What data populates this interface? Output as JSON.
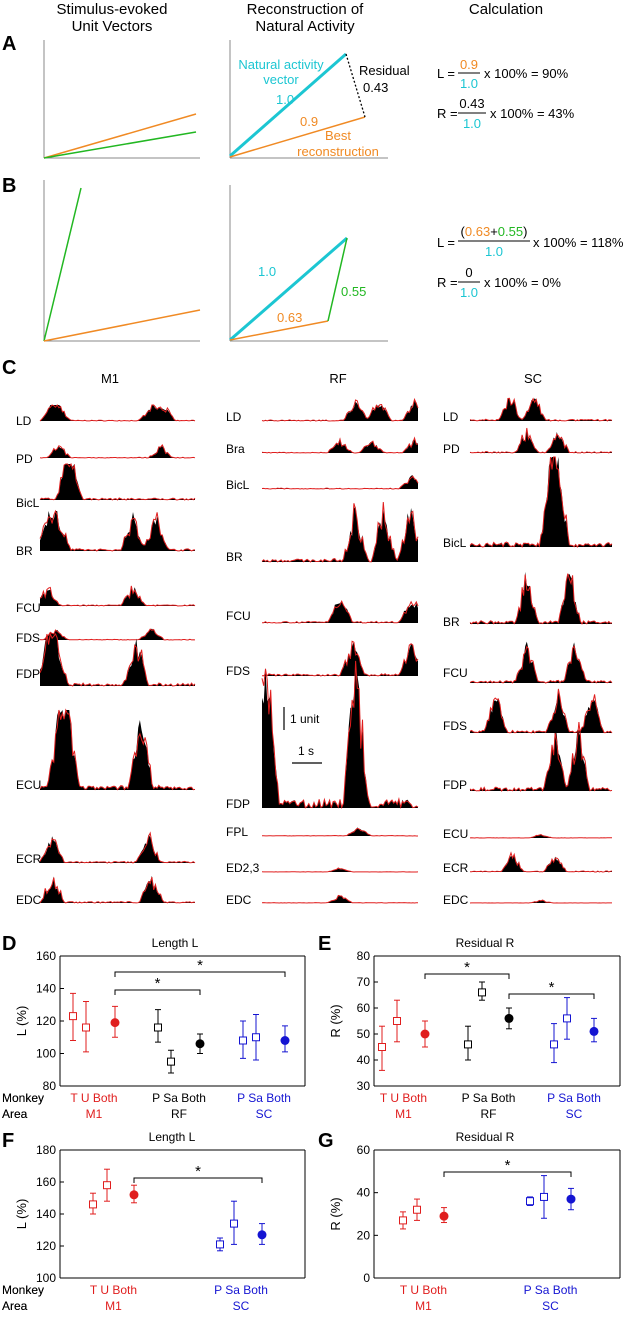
{
  "colors": {
    "orange": "#F08A24",
    "green": "#22B722",
    "cyan": "#1CC6D2",
    "red": "#E01E1E",
    "blue": "#1414D2",
    "black": "#000000",
    "grey": "#555555"
  },
  "panelA": {
    "label": "A",
    "headers": {
      "col1_line1": "Stimulus-evoked",
      "col1_line2": "Unit Vectors",
      "col2_line1": "Reconstruction of",
      "col2_line2": "Natural Activity",
      "col3": "Calculation"
    },
    "natural_label_1": "Natural activity",
    "natural_label_2": "vector",
    "natural_value": "1.0",
    "residual_label": "Residual",
    "residual_value": "0.43",
    "best_value": "0.9",
    "best_label_1": "Best",
    "best_label_2": "reconstruction",
    "L_prefix": "L =",
    "L_num": "0.9",
    "L_den": "1.0",
    "L_suffix": "x 100% = 90%",
    "R_prefix": "R =",
    "R_num": "0.43",
    "R_den": "1.0",
    "R_suffix": "x 100% = 43%"
  },
  "panelB": {
    "label": "B",
    "cyan_value": "1.0",
    "green_value": "0.55",
    "orange_value": "0.63",
    "L_prefix": "L =",
    "L_open": "(",
    "L_num1": "0.63",
    "L_plus": "+",
    "L_num2": "0.55",
    "L_close": ")",
    "L_den": "1.0",
    "L_suffix": "x 100% = 118%",
    "R_prefix": "R =",
    "R_num": "0",
    "R_den": "1.0",
    "R_suffix": "x 100% = 0%"
  },
  "panelC": {
    "label": "C",
    "columns": [
      {
        "title": "M1",
        "muscles": [
          "LD",
          "PD",
          "BicL",
          "BR",
          "FCU",
          "FDS",
          "FDP",
          "ECU",
          "ECR",
          "EDC"
        ]
      },
      {
        "title": "RF",
        "muscles": [
          "LD",
          "Bra",
          "BicL",
          "BR",
          "FCU",
          "FDS",
          "FDP",
          "FPL",
          "ED2,3",
          "EDC"
        ]
      },
      {
        "title": "SC",
        "muscles": [
          "LD",
          "PD",
          "BicL",
          "BR",
          "FCU",
          "FDS",
          "FDP",
          "ECU",
          "ECR",
          "EDC"
        ]
      }
    ],
    "scale_unit": "1 unit",
    "scale_time": "1 s"
  },
  "panelD": {
    "label": "D",
    "title": "Length L",
    "ylabel": "L (%)",
    "yticks": [
      "80",
      "100",
      "120",
      "140",
      "160"
    ],
    "star": "*",
    "groups": [
      {
        "letters": [
          "T",
          "U",
          "Both"
        ],
        "area": "M1",
        "color": "red"
      },
      {
        "letters": [
          "P",
          "Sa",
          "Both"
        ],
        "area": "RF",
        "color": "black"
      },
      {
        "letters": [
          "P",
          "Sa",
          "Both"
        ],
        "area": "SC",
        "color": "blue"
      }
    ]
  },
  "panelE": {
    "label": "E",
    "title": "Residual R",
    "ylabel": "R (%)",
    "yticks": [
      "30",
      "40",
      "50",
      "60",
      "70",
      "80"
    ],
    "star": "*",
    "groups": [
      {
        "letters": [
          "T",
          "U",
          "Both"
        ],
        "area": "M1",
        "color": "red"
      },
      {
        "letters": [
          "P",
          "Sa",
          "Both"
        ],
        "area": "RF",
        "color": "black"
      },
      {
        "letters": [
          "P",
          "Sa",
          "Both"
        ],
        "area": "SC",
        "color": "blue"
      }
    ]
  },
  "panelF": {
    "label": "F",
    "title": "Length L",
    "ylabel": "L (%)",
    "yticks": [
      "100",
      "120",
      "140",
      "160",
      "180"
    ],
    "star": "*",
    "groups": [
      {
        "letters": [
          "T",
          "U",
          "Both"
        ],
        "area": "M1",
        "color": "red"
      },
      {
        "letters": [
          "P",
          "Sa",
          "Both"
        ],
        "area": "SC",
        "color": "blue"
      }
    ]
  },
  "panelG": {
    "label": "G",
    "title": "Residual R",
    "ylabel": "R (%)",
    "yticks": [
      "0",
      "20",
      "40",
      "60"
    ],
    "star": "*",
    "groups": [
      {
        "letters": [
          "T",
          "U",
          "Both"
        ],
        "area": "M1",
        "color": "red"
      },
      {
        "letters": [
          "P",
          "Sa",
          "Both"
        ],
        "area": "SC",
        "color": "blue"
      }
    ]
  },
  "row_labels": {
    "monkey": "Monkey",
    "area": "Area"
  },
  "chart_data": [
    {
      "type": "scatter",
      "panel": "D",
      "title": "Length L",
      "ylabel": "L (%)",
      "ylim": [
        80,
        160
      ],
      "categories": [
        "T",
        "U",
        "Both (M1)",
        "P",
        "Sa",
        "Both (RF)",
        "P",
        "Sa",
        "Both (SC)"
      ],
      "series": [
        {
          "name": "M1",
          "color": "red",
          "points": [
            {
              "x": "T",
              "y": 123,
              "lo": 108,
              "hi": 137,
              "marker": "open"
            },
            {
              "x": "U",
              "y": 116,
              "lo": 101,
              "hi": 132,
              "marker": "open"
            },
            {
              "x": "Both",
              "y": 119,
              "lo": 110,
              "hi": 129,
              "marker": "filled"
            }
          ]
        },
        {
          "name": "RF",
          "color": "black",
          "points": [
            {
              "x": "P",
              "y": 116,
              "lo": 107,
              "hi": 127,
              "marker": "open"
            },
            {
              "x": "Sa",
              "y": 95,
              "lo": 88,
              "hi": 102,
              "marker": "open"
            },
            {
              "x": "Both",
              "y": 106,
              "lo": 100,
              "hi": 112,
              "marker": "filled"
            }
          ]
        },
        {
          "name": "SC",
          "color": "blue",
          "points": [
            {
              "x": "P",
              "y": 108,
              "lo": 97,
              "hi": 120,
              "marker": "open"
            },
            {
              "x": "Sa",
              "y": 110,
              "lo": 96,
              "hi": 124,
              "marker": "open"
            },
            {
              "x": "Both",
              "y": 108,
              "lo": 101,
              "hi": 117,
              "marker": "filled"
            }
          ]
        }
      ],
      "significance": [
        [
          "Both (M1)",
          "Both (RF)"
        ],
        [
          "Both (M1)",
          "Both (SC)"
        ]
      ]
    },
    {
      "type": "scatter",
      "panel": "E",
      "title": "Residual R",
      "ylabel": "R (%)",
      "ylim": [
        30,
        80
      ],
      "categories": [
        "T",
        "U",
        "Both (M1)",
        "P",
        "Sa",
        "Both (RF)",
        "P",
        "Sa",
        "Both (SC)"
      ],
      "series": [
        {
          "name": "M1",
          "color": "red",
          "points": [
            {
              "x": "T",
              "y": 45,
              "lo": 36,
              "hi": 53,
              "marker": "open"
            },
            {
              "x": "U",
              "y": 55,
              "lo": 47,
              "hi": 63,
              "marker": "open"
            },
            {
              "x": "Both",
              "y": 50,
              "lo": 45,
              "hi": 55,
              "marker": "filled"
            }
          ]
        },
        {
          "name": "RF",
          "color": "black",
          "points": [
            {
              "x": "P",
              "y": 46,
              "lo": 40,
              "hi": 53,
              "marker": "open"
            },
            {
              "x": "Sa",
              "y": 66,
              "lo": 63,
              "hi": 70,
              "marker": "open"
            },
            {
              "x": "Both",
              "y": 56,
              "lo": 52,
              "hi": 60,
              "marker": "filled"
            }
          ]
        },
        {
          "name": "SC",
          "color": "blue",
          "points": [
            {
              "x": "P",
              "y": 46,
              "lo": 39,
              "hi": 54,
              "marker": "open"
            },
            {
              "x": "Sa",
              "y": 56,
              "lo": 48,
              "hi": 64,
              "marker": "open"
            },
            {
              "x": "Both",
              "y": 51,
              "lo": 47,
              "hi": 56,
              "marker": "filled"
            }
          ]
        }
      ],
      "significance": [
        [
          "Both (M1)",
          "Both (RF)"
        ],
        [
          "Both (RF)",
          "Both (SC)"
        ]
      ]
    },
    {
      "type": "scatter",
      "panel": "F",
      "title": "Length L",
      "ylabel": "L (%)",
      "ylim": [
        100,
        180
      ],
      "categories": [
        "T",
        "U",
        "Both (M1)",
        "P",
        "Sa",
        "Both (SC)"
      ],
      "series": [
        {
          "name": "M1",
          "color": "red",
          "points": [
            {
              "x": "T",
              "y": 146,
              "lo": 140,
              "hi": 153,
              "marker": "open"
            },
            {
              "x": "U",
              "y": 158,
              "lo": 148,
              "hi": 168,
              "marker": "open"
            },
            {
              "x": "Both",
              "y": 152,
              "lo": 147,
              "hi": 158,
              "marker": "filled"
            }
          ]
        },
        {
          "name": "SC",
          "color": "blue",
          "points": [
            {
              "x": "P",
              "y": 121,
              "lo": 117,
              "hi": 125,
              "marker": "open"
            },
            {
              "x": "Sa",
              "y": 134,
              "lo": 121,
              "hi": 148,
              "marker": "open"
            },
            {
              "x": "Both",
              "y": 127,
              "lo": 121,
              "hi": 134,
              "marker": "filled"
            }
          ]
        }
      ],
      "significance": [
        [
          "Both (M1)",
          "Both (SC)"
        ]
      ]
    },
    {
      "type": "scatter",
      "panel": "G",
      "title": "Residual R",
      "ylabel": "R (%)",
      "ylim": [
        0,
        60
      ],
      "categories": [
        "T",
        "U",
        "Both (M1)",
        "P",
        "Sa",
        "Both (SC)"
      ],
      "series": [
        {
          "name": "M1",
          "color": "red",
          "points": [
            {
              "x": "T",
              "y": 27,
              "lo": 23,
              "hi": 31,
              "marker": "open"
            },
            {
              "x": "U",
              "y": 32,
              "lo": 27,
              "hi": 37,
              "marker": "open"
            },
            {
              "x": "Both",
              "y": 29,
              "lo": 26,
              "hi": 33,
              "marker": "filled"
            }
          ]
        },
        {
          "name": "SC",
          "color": "blue",
          "points": [
            {
              "x": "P",
              "y": 36,
              "lo": 34,
              "hi": 38,
              "marker": "open"
            },
            {
              "x": "Sa",
              "y": 38,
              "lo": 28,
              "hi": 48,
              "marker": "open"
            },
            {
              "x": "Both",
              "y": 37,
              "lo": 32,
              "hi": 42,
              "marker": "filled"
            }
          ]
        }
      ],
      "significance": [
        [
          "Both (M1)",
          "Both (SC)"
        ]
      ]
    }
  ]
}
